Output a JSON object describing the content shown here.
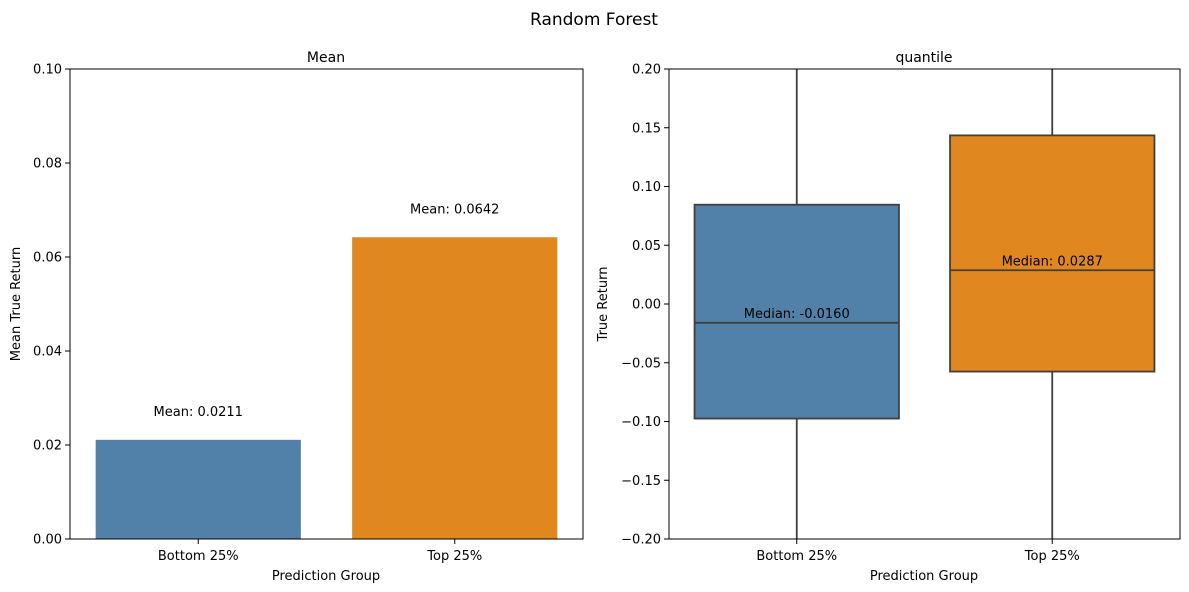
{
  "figure": {
    "title": "Random Forest"
  },
  "chart_data": [
    {
      "type": "bar",
      "title": "Mean",
      "xlabel": "Prediction Group",
      "ylabel": "Mean True Return",
      "categories": [
        "Bottom 25%",
        "Top 25%"
      ],
      "values": [
        0.0211,
        0.0642
      ],
      "data_labels": [
        "Mean: 0.0211",
        "Mean: 0.0642"
      ],
      "colors": [
        "#5180a8",
        "#e0881f"
      ],
      "ylim": [
        0,
        0.1
      ],
      "yticks": [
        0.0,
        0.02,
        0.04,
        0.06,
        0.08,
        0.1
      ],
      "ytick_labels": [
        "0.00",
        "0.02",
        "0.04",
        "0.06",
        "0.08",
        "0.10"
      ],
      "grid": false
    },
    {
      "type": "box",
      "title": "quantile",
      "xlabel": "Prediction Group",
      "ylabel": "True Return",
      "categories": [
        "Bottom 25%",
        "Top 25%"
      ],
      "boxes": [
        {
          "q1": -0.0975,
          "median": -0.016,
          "q3": 0.0845
        },
        {
          "q1": -0.0575,
          "median": 0.0287,
          "q3": 0.1435
        }
      ],
      "data_labels": [
        "Median: -0.0160",
        "Median: 0.0287"
      ],
      "colors": [
        "#5180a8",
        "#e0881f"
      ],
      "ylim": [
        -0.2,
        0.2
      ],
      "yticks": [
        -0.2,
        -0.15,
        -0.1,
        -0.05,
        0.0,
        0.05,
        0.1,
        0.15,
        0.2
      ],
      "ytick_labels": [
        "−0.20",
        "−0.15",
        "−0.10",
        "−0.05",
        "0.00",
        "0.05",
        "0.10",
        "0.15",
        "0.20"
      ],
      "grid": false
    }
  ]
}
